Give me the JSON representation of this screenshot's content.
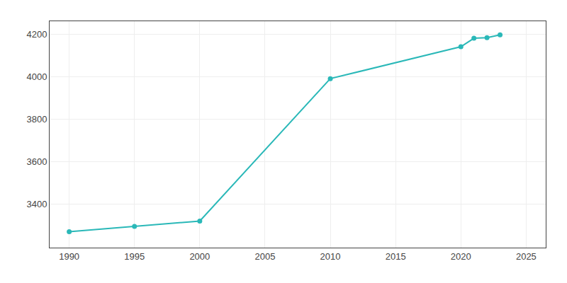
{
  "chart_data": {
    "type": "line",
    "x": [
      1990,
      1995,
      2000,
      2010,
      2020,
      2021,
      2022,
      2023
    ],
    "values": [
      3270,
      3295,
      3320,
      3990,
      4140,
      4180,
      4183,
      4196
    ],
    "color": "#2ab8b8",
    "marker": "circle",
    "line_style": "solid",
    "xlim": [
      1988.5,
      2026.5
    ],
    "ylim": [
      3195,
      4260
    ],
    "xticks": [
      1990,
      1995,
      2000,
      2005,
      2010,
      2015,
      2020,
      2025
    ],
    "yticks": [
      3400,
      3600,
      3800,
      4000,
      4200
    ],
    "grid": true
  }
}
